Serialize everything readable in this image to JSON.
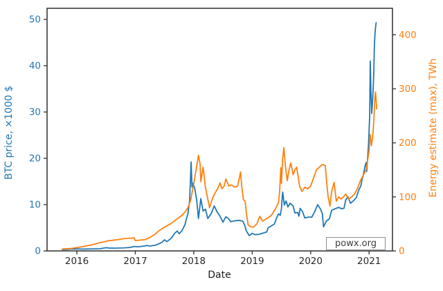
{
  "figure": {
    "watermark": "powx.org"
  },
  "chart_data": {
    "type": "line",
    "title": "",
    "xlabel": "Date",
    "ylabel_left": "BTC price, ×1000 $",
    "ylabel_right": "Energy estimate (max), TWh",
    "watermark": "powx.org",
    "grid": false,
    "legend": "none",
    "x_unit": "calendar year (fractional)",
    "xlim": [
      2015.49,
      2021.4
    ],
    "x_ticks": [
      2016,
      2017,
      2018,
      2019,
      2020,
      2021
    ],
    "ylim_left": [
      0,
      52.4
    ],
    "y_ticks_left": [
      0,
      10,
      20,
      30,
      40,
      50
    ],
    "ylim_right": [
      0,
      449
    ],
    "y_ticks_right": [
      0,
      100,
      200,
      300,
      400
    ],
    "colors": {
      "btc": "#1f77b4",
      "energy": "#ff7f0e",
      "axis": "#3a3a3a",
      "xtick_text": "#262626"
    },
    "series": [
      {
        "id": "btc-price",
        "name": "BTC price, ×1000 $",
        "axis": "left",
        "color": "#1f77b4",
        "points": [
          [
            2015.75,
            0.3
          ],
          [
            2015.83,
            0.33
          ],
          [
            2015.9,
            0.42
          ],
          [
            2016.0,
            0.43
          ],
          [
            2016.1,
            0.39
          ],
          [
            2016.25,
            0.43
          ],
          [
            2016.4,
            0.46
          ],
          [
            2016.45,
            0.6
          ],
          [
            2016.5,
            0.68
          ],
          [
            2016.55,
            0.62
          ],
          [
            2016.65,
            0.6
          ],
          [
            2016.8,
            0.65
          ],
          [
            2016.9,
            0.73
          ],
          [
            2016.98,
            0.96
          ],
          [
            2017.05,
            0.89
          ],
          [
            2017.15,
            1.05
          ],
          [
            2017.2,
            1.18
          ],
          [
            2017.25,
            1.05
          ],
          [
            2017.35,
            1.25
          ],
          [
            2017.45,
            1.8
          ],
          [
            2017.5,
            2.4
          ],
          [
            2017.54,
            2.0
          ],
          [
            2017.58,
            2.4
          ],
          [
            2017.62,
            2.8
          ],
          [
            2017.68,
            3.9
          ],
          [
            2017.72,
            4.3
          ],
          [
            2017.75,
            3.7
          ],
          [
            2017.8,
            4.4
          ],
          [
            2017.85,
            5.7
          ],
          [
            2017.88,
            7.2
          ],
          [
            2017.9,
            8.0
          ],
          [
            2017.93,
            11.0
          ],
          [
            2017.955,
            19.2
          ],
          [
            2017.97,
            13.8
          ],
          [
            2017.99,
            14.6
          ],
          [
            2018.02,
            13.3
          ],
          [
            2018.05,
            11.0
          ],
          [
            2018.08,
            7.0
          ],
          [
            2018.12,
            11.3
          ],
          [
            2018.16,
            8.6
          ],
          [
            2018.2,
            9.0
          ],
          [
            2018.24,
            7.0
          ],
          [
            2018.3,
            8.1
          ],
          [
            2018.35,
            9.7
          ],
          [
            2018.4,
            8.4
          ],
          [
            2018.45,
            7.5
          ],
          [
            2018.5,
            6.2
          ],
          [
            2018.55,
            7.4
          ],
          [
            2018.6,
            6.9
          ],
          [
            2018.63,
            6.3
          ],
          [
            2018.7,
            6.5
          ],
          [
            2018.78,
            6.6
          ],
          [
            2018.84,
            6.4
          ],
          [
            2018.87,
            5.6
          ],
          [
            2018.9,
            4.3
          ],
          [
            2018.95,
            3.3
          ],
          [
            2019.0,
            3.8
          ],
          [
            2019.05,
            3.5
          ],
          [
            2019.12,
            3.6
          ],
          [
            2019.2,
            3.9
          ],
          [
            2019.25,
            4.1
          ],
          [
            2019.27,
            5.0
          ],
          [
            2019.33,
            5.4
          ],
          [
            2019.38,
            5.8
          ],
          [
            2019.42,
            7.2
          ],
          [
            2019.45,
            8.0
          ],
          [
            2019.48,
            7.7
          ],
          [
            2019.5,
            9.1
          ],
          [
            2019.52,
            12.7
          ],
          [
            2019.55,
            9.9
          ],
          [
            2019.58,
            10.8
          ],
          [
            2019.61,
            9.5
          ],
          [
            2019.65,
            10.3
          ],
          [
            2019.7,
            9.7
          ],
          [
            2019.73,
            8.2
          ],
          [
            2019.78,
            8.3
          ],
          [
            2019.8,
            7.5
          ],
          [
            2019.82,
            9.2
          ],
          [
            2019.86,
            8.5
          ],
          [
            2019.9,
            7.1
          ],
          [
            2019.96,
            7.3
          ],
          [
            2020.02,
            7.3
          ],
          [
            2020.07,
            8.5
          ],
          [
            2020.12,
            10.0
          ],
          [
            2020.17,
            9.0
          ],
          [
            2020.2,
            8.0
          ],
          [
            2020.22,
            5.2
          ],
          [
            2020.27,
            6.5
          ],
          [
            2020.32,
            6.9
          ],
          [
            2020.36,
            8.8
          ],
          [
            2020.42,
            9.1
          ],
          [
            2020.48,
            9.4
          ],
          [
            2020.53,
            9.1
          ],
          [
            2020.57,
            9.2
          ],
          [
            2020.6,
            11.0
          ],
          [
            2020.64,
            11.7
          ],
          [
            2020.68,
            10.3
          ],
          [
            2020.73,
            10.8
          ],
          [
            2020.78,
            11.5
          ],
          [
            2020.82,
            13.0
          ],
          [
            2020.86,
            14.1
          ],
          [
            2020.88,
            15.5
          ],
          [
            2020.9,
            16.3
          ],
          [
            2020.93,
            18.3
          ],
          [
            2020.95,
            19.1
          ],
          [
            2020.96,
            17.2
          ],
          [
            2020.99,
            23.0
          ],
          [
            2021.01,
            29.3
          ],
          [
            2021.02,
            41.0
          ],
          [
            2021.03,
            35.0
          ],
          [
            2021.045,
            29.7
          ],
          [
            2021.06,
            32.5
          ],
          [
            2021.07,
            35.0
          ],
          [
            2021.08,
            38.5
          ],
          [
            2021.09,
            44.0
          ],
          [
            2021.1,
            46.8
          ],
          [
            2021.11,
            48.2
          ],
          [
            2021.12,
            49.3
          ]
        ]
      },
      {
        "id": "energy-estimate",
        "name": "Energy estimate (max), TWh",
        "axis": "right",
        "color": "#ff7f0e",
        "points": [
          [
            2015.75,
            3.5
          ],
          [
            2015.9,
            4.5
          ],
          [
            2016.0,
            6
          ],
          [
            2016.1,
            8
          ],
          [
            2016.25,
            11
          ],
          [
            2016.35,
            14
          ],
          [
            2016.45,
            16.5
          ],
          [
            2016.55,
            19
          ],
          [
            2016.6,
            19.5
          ],
          [
            2016.7,
            21
          ],
          [
            2016.8,
            22.5
          ],
          [
            2016.9,
            23.5
          ],
          [
            2016.98,
            24
          ],
          [
            2017.0,
            19
          ],
          [
            2017.08,
            20
          ],
          [
            2017.17,
            21
          ],
          [
            2017.25,
            25
          ],
          [
            2017.33,
            30
          ],
          [
            2017.4,
            37
          ],
          [
            2017.5,
            44
          ],
          [
            2017.55,
            47
          ],
          [
            2017.6,
            50
          ],
          [
            2017.65,
            54
          ],
          [
            2017.7,
            58
          ],
          [
            2017.75,
            62
          ],
          [
            2017.8,
            66
          ],
          [
            2017.85,
            72
          ],
          [
            2017.9,
            80
          ],
          [
            2017.95,
            95
          ],
          [
            2018.0,
            125
          ],
          [
            2018.04,
            150
          ],
          [
            2018.08,
            177
          ],
          [
            2018.11,
            160
          ],
          [
            2018.12,
            128
          ],
          [
            2018.16,
            155
          ],
          [
            2018.2,
            118
          ],
          [
            2018.24,
            96
          ],
          [
            2018.27,
            80
          ],
          [
            2018.3,
            90
          ],
          [
            2018.33,
            100
          ],
          [
            2018.38,
            110
          ],
          [
            2018.42,
            118
          ],
          [
            2018.45,
            126
          ],
          [
            2018.48,
            115
          ],
          [
            2018.52,
            120
          ],
          [
            2018.55,
            133
          ],
          [
            2018.6,
            120
          ],
          [
            2018.65,
            122
          ],
          [
            2018.7,
            118
          ],
          [
            2018.75,
            120
          ],
          [
            2018.78,
            135
          ],
          [
            2018.8,
            146
          ],
          [
            2018.82,
            120
          ],
          [
            2018.85,
            95
          ],
          [
            2018.88,
            92
          ],
          [
            2018.9,
            70
          ],
          [
            2018.93,
            48
          ],
          [
            2018.97,
            45
          ],
          [
            2019.02,
            44
          ],
          [
            2019.08,
            50
          ],
          [
            2019.13,
            64
          ],
          [
            2019.18,
            55
          ],
          [
            2019.22,
            58
          ],
          [
            2019.28,
            62
          ],
          [
            2019.33,
            66
          ],
          [
            2019.4,
            78
          ],
          [
            2019.45,
            90
          ],
          [
            2019.47,
            110
          ],
          [
            2019.49,
            154
          ],
          [
            2019.5,
            125
          ],
          [
            2019.52,
            170
          ],
          [
            2019.54,
            191
          ],
          [
            2019.57,
            155
          ],
          [
            2019.6,
            130
          ],
          [
            2019.63,
            150
          ],
          [
            2019.66,
            163
          ],
          [
            2019.7,
            141
          ],
          [
            2019.73,
            150
          ],
          [
            2019.76,
            155
          ],
          [
            2019.79,
            135
          ],
          [
            2019.81,
            120
          ],
          [
            2019.85,
            110
          ],
          [
            2019.9,
            118
          ],
          [
            2019.95,
            115
          ],
          [
            2020.0,
            120
          ],
          [
            2020.05,
            135
          ],
          [
            2020.1,
            150
          ],
          [
            2020.15,
            155
          ],
          [
            2020.2,
            160
          ],
          [
            2020.25,
            158
          ],
          [
            2020.28,
            120
          ],
          [
            2020.3,
            100
          ],
          [
            2020.33,
            83
          ],
          [
            2020.36,
            110
          ],
          [
            2020.4,
            127
          ],
          [
            2020.44,
            92
          ],
          [
            2020.48,
            100
          ],
          [
            2020.52,
            96
          ],
          [
            2020.56,
            100
          ],
          [
            2020.6,
            105
          ],
          [
            2020.65,
            96
          ],
          [
            2020.7,
            100
          ],
          [
            2020.75,
            105
          ],
          [
            2020.8,
            115
          ],
          [
            2020.85,
            130
          ],
          [
            2020.9,
            140
          ],
          [
            2020.95,
            150
          ],
          [
            2021.0,
            185
          ],
          [
            2021.02,
            215
          ],
          [
            2021.04,
            195
          ],
          [
            2021.06,
            210
          ],
          [
            2021.08,
            240
          ],
          [
            2021.1,
            285
          ],
          [
            2021.11,
            294
          ],
          [
            2021.13,
            263
          ]
        ]
      }
    ]
  }
}
